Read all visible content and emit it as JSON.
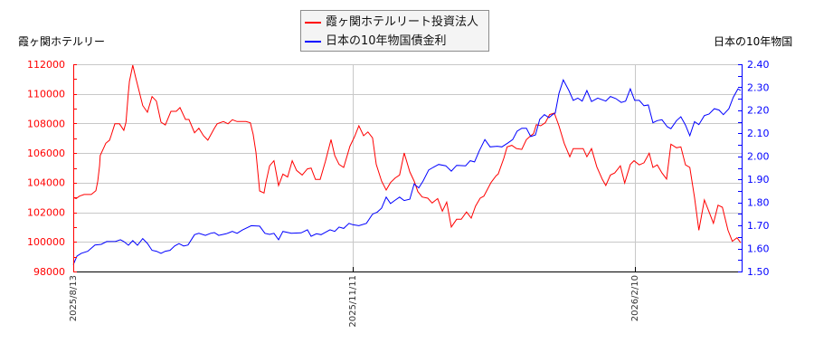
{
  "legend": {
    "items": [
      {
        "label": "霞ヶ関ホテルリート投資法人",
        "color": "#ff0000"
      },
      {
        "label": "日本の10年物国債金利",
        "color": "#0000ff"
      }
    ]
  },
  "axes": {
    "left_title": "霞ヶ関ホテルリー",
    "right_title": "日本の10年物国",
    "left_color": "#ff0000",
    "right_color": "#0000ff",
    "grid_color": "#c8c8c8"
  },
  "chart_data": {
    "type": "line",
    "title": "",
    "xlabel": "",
    "grid": true,
    "legend_position": "top-center",
    "x_range": [
      0,
      215.5
    ],
    "x_ticks": [
      {
        "label": "2025/8/13",
        "x": 0
      },
      {
        "label": "2025/11/11",
        "x": 90
      },
      {
        "label": "2026/2/10",
        "x": 181
      }
    ],
    "y_left": {
      "label": "霞ヶ関ホテルリー",
      "range": [
        98000,
        112000
      ],
      "ticks": [
        "112000",
        "110000",
        "108000",
        "106000",
        "104000",
        "102000",
        "100000",
        "98000"
      ]
    },
    "y_right": {
      "label": "日本の10年物国",
      "range": [
        1.5,
        2.4
      ],
      "ticks": [
        "2.40",
        "2.30",
        "2.20",
        "2.10",
        "2.00",
        "1.90",
        "1.80",
        "1.70",
        "1.60",
        "1.50"
      ]
    },
    "series": [
      {
        "name": "霞ヶ関ホテルリート投資法人",
        "axis": "left",
        "color": "#ff0000",
        "x": [
          0,
          0.9,
          2.0,
          3.5,
          5.8,
          7.3,
          7.9,
          8.5,
          8.7,
          9.9,
          10.5,
          11.7,
          12.2,
          13.4,
          14.9,
          16.3,
          17.0,
          17.7,
          18.1,
          19.2,
          20.1,
          22.4,
          23.9,
          25.4,
          26.8,
          28.3,
          29.7,
          31.5,
          33.2,
          34.4,
          36.2,
          37.3,
          39.1,
          40.5,
          42.0,
          43.4,
          45.5,
          46.4,
          48.4,
          49.9,
          51.3,
          52.8,
          55.7,
          57.1,
          58.0,
          58.9,
          60.1,
          61.5,
          62.1,
          63.3,
          64.7,
          66.2,
          67.6,
          69.1,
          70.6,
          72.0,
          73.8,
          75.5,
          76.7,
          78.1,
          79.6,
          81.3,
          83.1,
          84.3,
          85.7,
          87.2,
          89.2,
          90.7,
          92.1,
          93.6,
          95.0,
          96.5,
          97.7,
          99.4,
          100.9,
          102.3,
          103.8,
          105.2,
          106.7,
          108.5,
          109.9,
          111.1,
          112.5,
          114.3,
          115.7,
          117.5,
          119.0,
          120.4,
          121.9,
          123.6,
          125.1,
          126.8,
          128.3,
          129.7,
          131.2,
          132.4,
          134.7,
          136.4,
          137.0,
          138.8,
          139.9,
          141.4,
          142.9,
          144.6,
          146.1,
          147.5,
          148.4,
          149.3,
          150.7,
          152.2,
          153.6,
          155.1,
          156.6,
          158.3,
          160.1,
          161.2,
          164.4,
          165.6,
          167.1,
          168.8,
          170.6,
          171.7,
          173.2,
          174.6,
          176.4,
          177.8,
          179.6,
          180.8,
          182.5,
          184.0,
          185.7,
          186.9,
          188.3,
          189.8,
          191.3,
          192.7,
          194.5,
          195.9,
          197.4,
          198.8,
          200.3,
          201.7,
          203.5,
          205.0,
          206.4,
          207.9,
          209.3,
          211.1,
          212.5,
          214.0,
          215.2
        ],
        "values": [
          103000,
          102930,
          103090,
          103200,
          103200,
          103460,
          104110,
          105150,
          105840,
          106380,
          106660,
          106870,
          107170,
          107980,
          107980,
          107540,
          108090,
          109920,
          110840,
          111940,
          111140,
          109210,
          108760,
          109820,
          109510,
          108090,
          107900,
          108820,
          108820,
          109070,
          108270,
          108270,
          107370,
          107680,
          107170,
          106870,
          107680,
          107980,
          108130,
          107980,
          108250,
          108130,
          108130,
          108050,
          107270,
          106050,
          103440,
          103300,
          104010,
          105140,
          105480,
          103810,
          104580,
          104380,
          105480,
          104830,
          104520,
          104930,
          104990,
          104220,
          104220,
          105440,
          106910,
          105840,
          105230,
          105030,
          106460,
          107110,
          107840,
          107170,
          107430,
          107030,
          105230,
          104110,
          103500,
          104010,
          104320,
          104520,
          106010,
          104730,
          104110,
          103400,
          103030,
          102950,
          102630,
          102930,
          102080,
          102690,
          101010,
          101530,
          101530,
          102020,
          101610,
          102420,
          102950,
          103090,
          104010,
          104480,
          104580,
          105640,
          106420,
          106520,
          106310,
          106250,
          106910,
          107170,
          107310,
          107920,
          107840,
          108050,
          108600,
          108700,
          107840,
          106660,
          105750,
          106300,
          106300,
          105750,
          106300,
          105070,
          104220,
          103810,
          104520,
          104660,
          105140,
          103970,
          105230,
          105480,
          105200,
          105340,
          105990,
          105030,
          105200,
          104660,
          104250,
          106600,
          106360,
          106420,
          105200,
          105030,
          103000,
          100790,
          102830,
          102020,
          101260,
          102480,
          102340,
          100790,
          100040,
          100280,
          99940
        ]
      },
      {
        "name": "日本の10年物国債金利",
        "axis": "right",
        "color": "#0000ff",
        "x": [
          0,
          1.2,
          2.6,
          4.7,
          7.0,
          9.0,
          10.8,
          13.7,
          15.2,
          16.3,
          17.8,
          19.2,
          20.7,
          22.4,
          23.9,
          25.4,
          26.8,
          28.3,
          29.7,
          31.2,
          32.7,
          34.1,
          35.6,
          37.0,
          39.1,
          40.5,
          42.6,
          44.3,
          45.5,
          46.9,
          49.3,
          51.3,
          52.8,
          54.5,
          57.4,
          60.1,
          61.8,
          63.3,
          64.7,
          66.2,
          67.6,
          70.3,
          73.5,
          75.5,
          76.7,
          78.4,
          79.9,
          81.3,
          82.8,
          84.3,
          85.7,
          87.2,
          88.9,
          90.1,
          92.1,
          94.5,
          96.5,
          98.0,
          99.4,
          100.9,
          102.3,
          103.8,
          105.2,
          106.7,
          108.5,
          109.9,
          111.4,
          112.8,
          114.6,
          116.0,
          117.8,
          120.1,
          121.9,
          123.6,
          126.5,
          128.0,
          129.4,
          130.9,
          132.7,
          134.4,
          136.7,
          138.2,
          140.2,
          141.7,
          143.1,
          144.6,
          146.1,
          147.5,
          149.0,
          150.4,
          151.9,
          153.4,
          154.5,
          155.4,
          156.6,
          158.0,
          159.8,
          161.2,
          162.7,
          164.1,
          165.6,
          167.1,
          169.1,
          171.7,
          173.2,
          174.9,
          176.7,
          178.1,
          179.6,
          181.0,
          182.5,
          184.0,
          185.4,
          186.9,
          188.3,
          189.8,
          191.5,
          192.7,
          194.5,
          195.9,
          197.4,
          198.8,
          200.3,
          201.7,
          203.5,
          205.0,
          206.7,
          208.2,
          209.6,
          211.4,
          212.8,
          214.3,
          215.2
        ],
        "values": [
          1.53,
          1.567,
          1.579,
          1.588,
          1.615,
          1.618,
          1.63,
          1.631,
          1.638,
          1.63,
          1.614,
          1.634,
          1.614,
          1.643,
          1.622,
          1.592,
          1.588,
          1.579,
          1.588,
          1.592,
          1.611,
          1.621,
          1.611,
          1.615,
          1.66,
          1.666,
          1.657,
          1.666,
          1.669,
          1.657,
          1.664,
          1.674,
          1.666,
          1.68,
          1.699,
          1.697,
          1.666,
          1.661,
          1.666,
          1.638,
          1.674,
          1.666,
          1.668,
          1.681,
          1.653,
          1.664,
          1.66,
          1.67,
          1.681,
          1.674,
          1.693,
          1.687,
          1.709,
          1.703,
          1.699,
          1.709,
          1.749,
          1.758,
          1.775,
          1.823,
          1.795,
          1.81,
          1.823,
          1.808,
          1.814,
          1.88,
          1.863,
          1.893,
          1.941,
          1.952,
          1.965,
          1.959,
          1.936,
          1.961,
          1.959,
          1.981,
          1.976,
          2.024,
          2.073,
          2.041,
          2.044,
          2.041,
          2.059,
          2.073,
          2.109,
          2.122,
          2.122,
          2.086,
          2.093,
          2.161,
          2.181,
          2.168,
          2.181,
          2.188,
          2.273,
          2.332,
          2.286,
          2.243,
          2.253,
          2.24,
          2.286,
          2.238,
          2.253,
          2.24,
          2.26,
          2.251,
          2.234,
          2.24,
          2.293,
          2.243,
          2.243,
          2.22,
          2.223,
          2.146,
          2.155,
          2.159,
          2.129,
          2.12,
          2.155,
          2.172,
          2.136,
          2.09,
          2.151,
          2.138,
          2.177,
          2.184,
          2.207,
          2.201,
          2.181,
          2.207,
          2.256,
          2.293,
          2.286
        ]
      }
    ]
  }
}
